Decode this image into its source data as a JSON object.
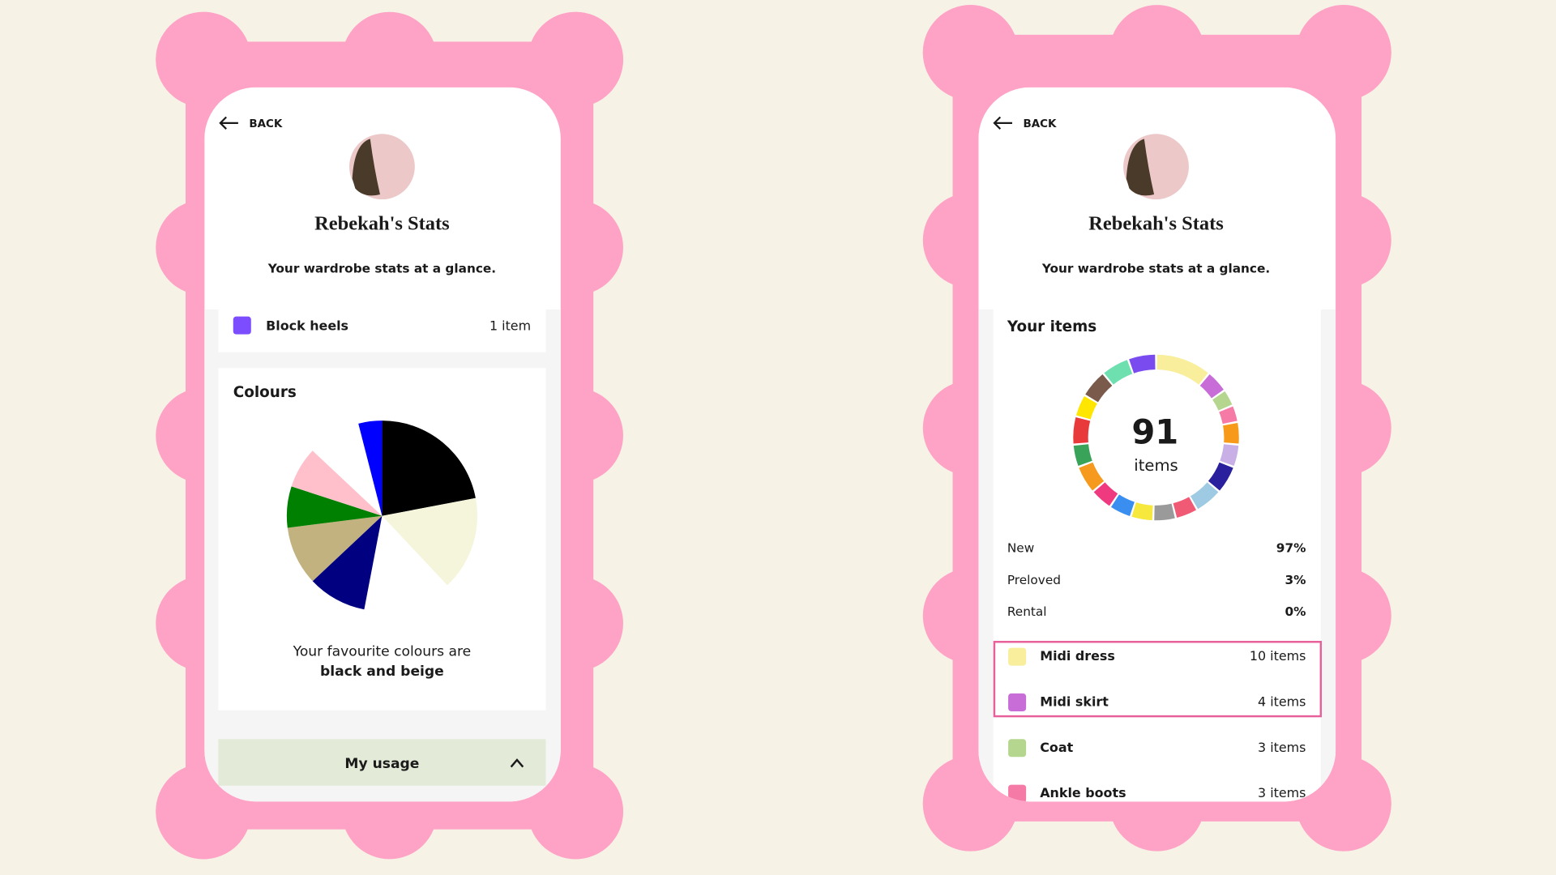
{
  "left_screen": {
    "back": "BACK",
    "title": "Rebekah's Stats",
    "subtitle": "Your wardrobe stats at a glance.",
    "list_item": {
      "label": "Block heels",
      "count": "1 item",
      "color": "#7c4dff"
    },
    "colours_card": {
      "heading": "Colours",
      "chart": {
        "type": "pie",
        "values": [
          22,
          16,
          15,
          10,
          10,
          7,
          7,
          9,
          4
        ],
        "colors": [
          "#000000",
          "#f5f5dc",
          "#ffffff",
          "#000080",
          "#c2b280",
          "#008000",
          "#ffc0cb",
          "#ffffff",
          "#0000ff"
        ]
      },
      "caption": "Your favourite colours are",
      "highlight": "black and beige"
    },
    "usage_button": "My usage"
  },
  "right_screen": {
    "back": "BACK",
    "title": "Rebekah's Stats",
    "subtitle": "Your wardrobe stats at a glance.",
    "items_card": {
      "heading": "Your items",
      "chart": {
        "type": "donut",
        "values": [
          10,
          4,
          3,
          3,
          4,
          4,
          5,
          5,
          4,
          4,
          4,
          4,
          4,
          5,
          4,
          5,
          4,
          5,
          5,
          5
        ],
        "colors": [
          "#f8ee9c",
          "#c86dd7",
          "#b5d68e",
          "#f57aa6",
          "#f79a1a",
          "#c8b0e6",
          "#2a1f9c",
          "#9ecbe3",
          "#f05a74",
          "#9a9a9a",
          "#f6e83c",
          "#3a8ef0",
          "#f03a80",
          "#f59a1f",
          "#3aa35a",
          "#e83a3a",
          "#ffe600",
          "#7a5a4a",
          "#6ee0b0",
          "#7a4cf0"
        ]
      },
      "total": 91,
      "total_label": "items"
    },
    "stats": [
      {
        "label": "New",
        "value": "97%"
      },
      {
        "label": "Preloved",
        "value": "3%"
      },
      {
        "label": "Rental",
        "value": "0%"
      }
    ],
    "items": [
      {
        "label": "Midi dress",
        "count": "10 items",
        "color": "#f8ee9c"
      },
      {
        "label": "Midi skirt",
        "count": "4 items",
        "color": "#c86dd7"
      },
      {
        "label": "Coat",
        "count": "3 items",
        "color": "#b5d68e"
      },
      {
        "label": "Ankle boots",
        "count": "3 items",
        "color": "#f57aa6"
      }
    ]
  }
}
